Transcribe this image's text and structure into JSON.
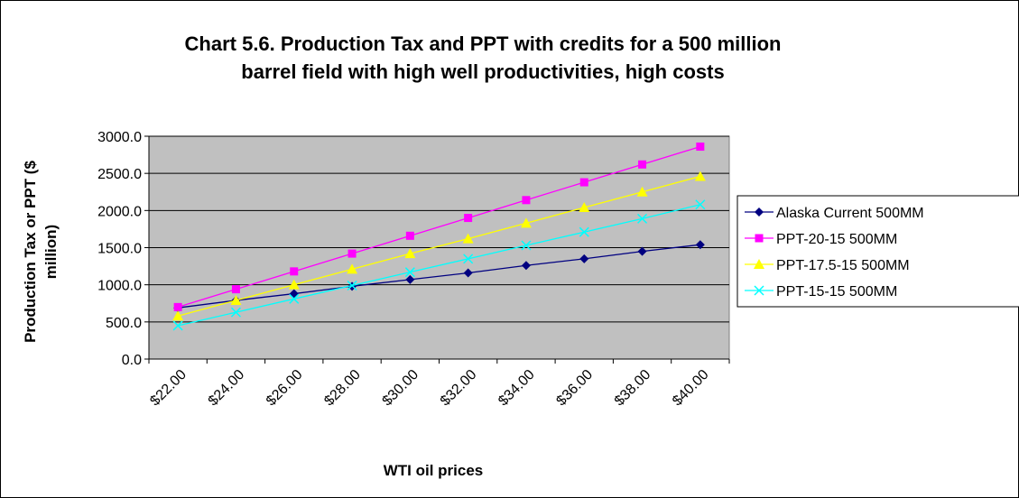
{
  "chart_data": {
    "type": "line",
    "title": "Chart 5.6. Production Tax and PPT with credits for a 500 million barrel field with high well productivities, high costs",
    "x_label": "WTI oil prices",
    "y_label": "Production Tax or PPT ($ million)",
    "categories": [
      "$22.00",
      "$24.00",
      "$26.00",
      "$28.00",
      "$30.00",
      "$32.00",
      "$34.00",
      "$36.00",
      "$38.00",
      "$40.00"
    ],
    "series": [
      {
        "name": "Alaska Current 500MM",
        "color": "#000080",
        "marker": "diamond",
        "values": [
          690,
          790,
          880,
          980,
          1070,
          1160,
          1260,
          1350,
          1450,
          1540
        ]
      },
      {
        "name": "PPT-20-15 500MM",
        "color": "#ff00ff",
        "marker": "square",
        "values": [
          700,
          940,
          1180,
          1420,
          1660,
          1900,
          2140,
          2380,
          2620,
          2860
        ]
      },
      {
        "name": "PPT-17.5-15 500MM",
        "color": "#ffff00",
        "marker": "triangle",
        "values": [
          580,
          790,
          1000,
          1210,
          1420,
          1620,
          1830,
          2040,
          2250,
          2460
        ]
      },
      {
        "name": "PPT-15-15 500MM",
        "color": "#00ffff",
        "marker": "x",
        "values": [
          450,
          630,
          810,
          990,
          1170,
          1350,
          1530,
          1710,
          1890,
          2080
        ]
      }
    ],
    "ylim": [
      0,
      3000
    ],
    "yticks": [
      {
        "value": 0,
        "label": "0.0"
      },
      {
        "value": 500,
        "label": "500.0"
      },
      {
        "value": 1000,
        "label": "1000.0"
      },
      {
        "value": 1500,
        "label": "1500.0"
      },
      {
        "value": 2000,
        "label": "2000.0"
      },
      {
        "value": 2500,
        "label": "2500.0"
      },
      {
        "value": 3000,
        "label": "3000.0"
      }
    ],
    "grid": true,
    "legend": "right"
  }
}
